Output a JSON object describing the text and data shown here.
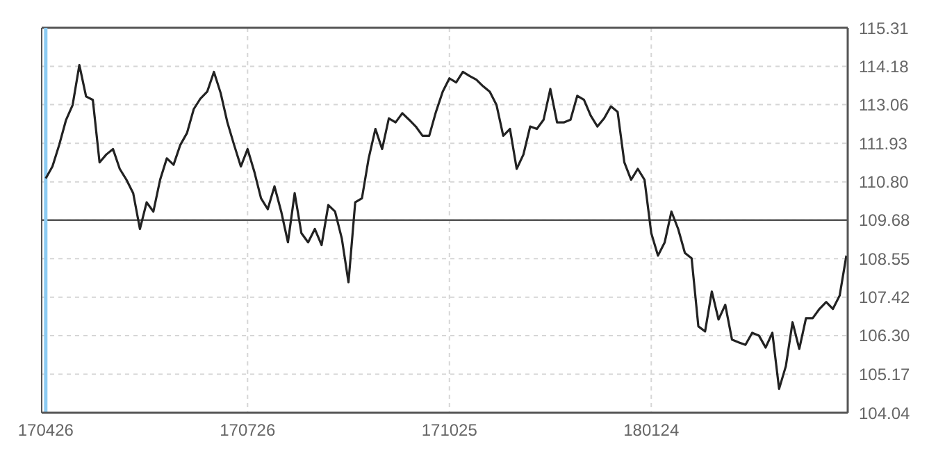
{
  "chart_data": {
    "type": "line",
    "categories": [
      "170426",
      null,
      null,
      null,
      null,
      null,
      null,
      null,
      null,
      null,
      null,
      null,
      null,
      null,
      null,
      null,
      null,
      null,
      null,
      null,
      null,
      null,
      null,
      null,
      null,
      null,
      null,
      null,
      null,
      null,
      "170726",
      null,
      null,
      null,
      null,
      null,
      null,
      null,
      null,
      null,
      null,
      null,
      null,
      null,
      null,
      null,
      null,
      null,
      null,
      null,
      null,
      null,
      null,
      null,
      null,
      null,
      null,
      null,
      null,
      null,
      "171025",
      null,
      null,
      null,
      null,
      null,
      null,
      null,
      null,
      null,
      null,
      null,
      null,
      null,
      null,
      null,
      null,
      null,
      null,
      null,
      null,
      null,
      null,
      null,
      null,
      null,
      null,
      null,
      null,
      null,
      "180124",
      null,
      null,
      null,
      null,
      null,
      null,
      null,
      null,
      null,
      null,
      null,
      null,
      null,
      null,
      null,
      null,
      null,
      null,
      null,
      null,
      null,
      null,
      null,
      null,
      null,
      null,
      null,
      null,
      null
    ],
    "series": [
      {
        "color": "#222222",
        "values": [
          110.9,
          111.25,
          111.88,
          112.6,
          113.05,
          114.22,
          113.3,
          113.2,
          111.37,
          111.6,
          111.76,
          111.18,
          110.86,
          110.47,
          109.42,
          110.2,
          109.93,
          110.86,
          111.49,
          111.3,
          111.88,
          112.23,
          112.93,
          113.24,
          113.44,
          114.02,
          113.4,
          112.54,
          111.88,
          111.25,
          111.76,
          111.1,
          110.32,
          110.0,
          110.67,
          109.93,
          109.03,
          110.47,
          109.3,
          109.03,
          109.42,
          108.95,
          110.12,
          109.93,
          109.15,
          107.86,
          110.2,
          110.32,
          111.49,
          112.35,
          111.76,
          112.66,
          112.54,
          112.81,
          112.62,
          112.42,
          112.15,
          112.15,
          112.85,
          113.44,
          113.83,
          113.71,
          114.02,
          113.9,
          113.79,
          113.6,
          113.44,
          113.05,
          112.15,
          112.35,
          111.18,
          111.6,
          112.42,
          112.35,
          112.62,
          113.52,
          112.54,
          112.54,
          112.62,
          113.32,
          113.2,
          112.74,
          112.42,
          112.66,
          113.01,
          112.85,
          111.37,
          110.86,
          111.18,
          110.86,
          109.3,
          108.64,
          109.03,
          109.93,
          109.42,
          108.72,
          108.56,
          106.57,
          106.42,
          107.59,
          106.77,
          107.2,
          106.18,
          106.1,
          106.03,
          106.38,
          106.3,
          105.95,
          106.38,
          104.74,
          105.4,
          106.69,
          105.91,
          106.81,
          106.81,
          107.08,
          107.28,
          107.08,
          107.47,
          108.64
        ]
      }
    ],
    "ylim": [
      104.04,
      115.31
    ],
    "yticks": [
      {
        "value": 104.04,
        "label": "104.04"
      },
      {
        "value": 105.17,
        "label": "105.17"
      },
      {
        "value": 106.3,
        "label": "106.30"
      },
      {
        "value": 107.42,
        "label": "107.42"
      },
      {
        "value": 108.55,
        "label": "108.55"
      },
      {
        "value": 109.68,
        "label": "109.68"
      },
      {
        "value": 110.8,
        "label": "110.80"
      },
      {
        "value": 111.93,
        "label": "111.93"
      },
      {
        "value": 113.06,
        "label": "113.06"
      },
      {
        "value": 114.18,
        "label": "114.18"
      },
      {
        "value": 115.31,
        "label": "115.31"
      }
    ],
    "ref_lines": [
      {
        "axis": "y",
        "value": 109.68,
        "color": "#555555"
      },
      {
        "axis": "x",
        "value": "170426",
        "color": "#8ccbf2"
      }
    ],
    "grid": true,
    "legend": false,
    "marker": "none",
    "line_style": "solid"
  }
}
